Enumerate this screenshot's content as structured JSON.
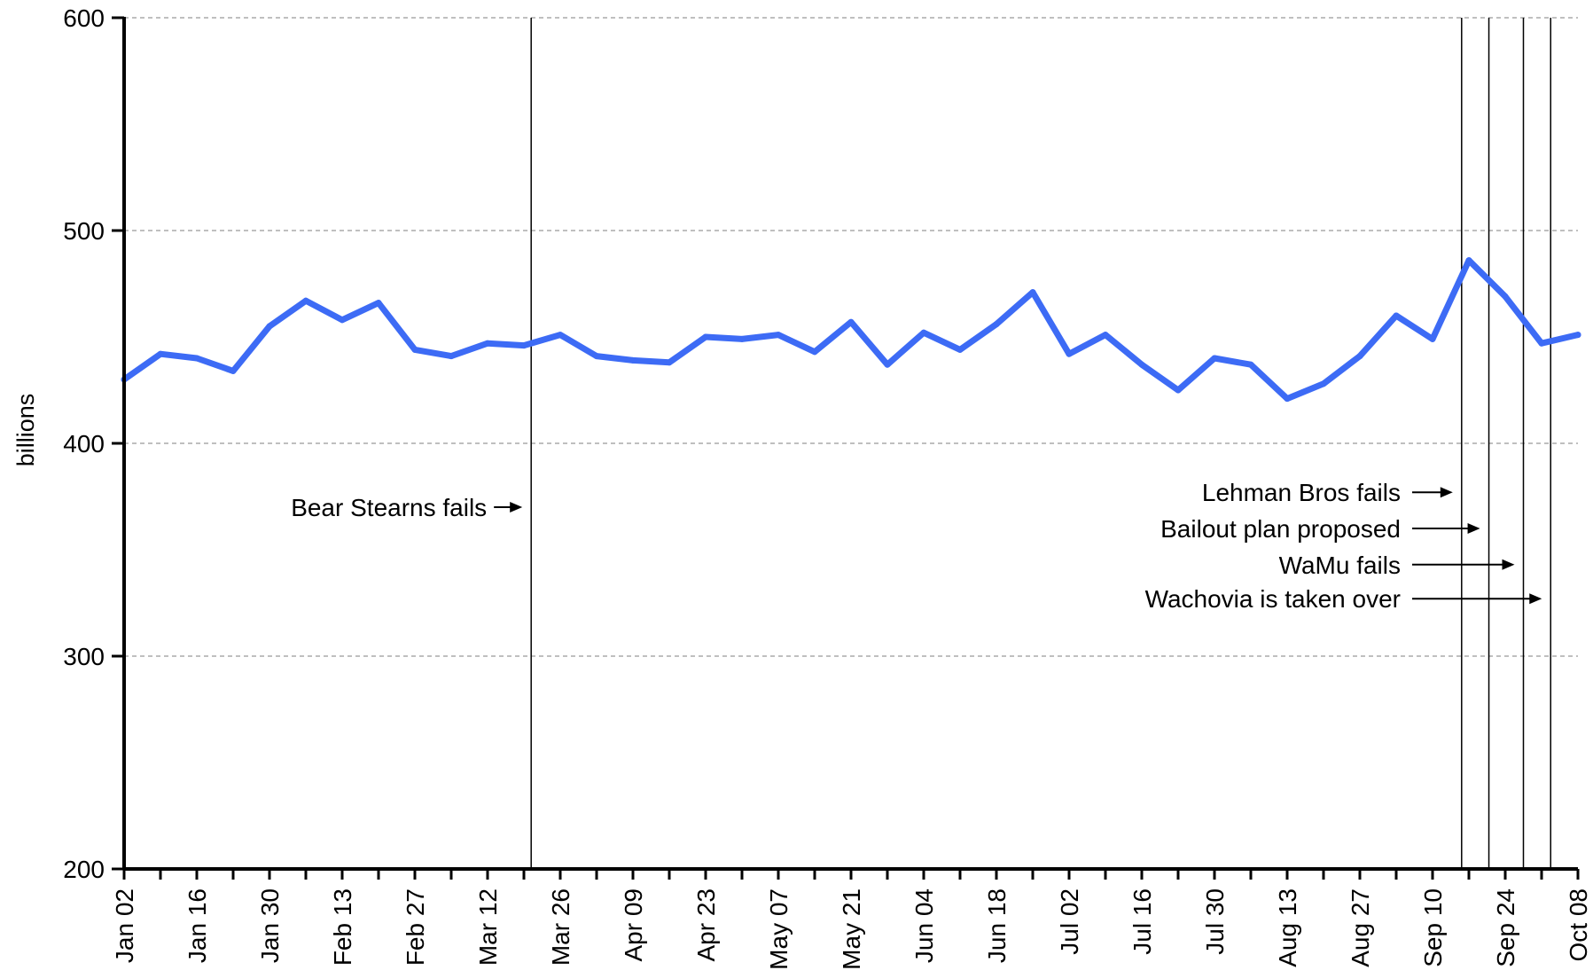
{
  "chart_data": {
    "type": "line",
    "ylabel": "billions",
    "ylim": [
      200,
      600
    ],
    "yticks": [
      200,
      300,
      400,
      500,
      600
    ],
    "grid": "horizontal-dashed",
    "x_tick_labels": [
      "Jan 02",
      "Jan 16",
      "Jan 30",
      "Feb 13",
      "Feb 27",
      "Mar 12",
      "Mar 26",
      "Apr 09",
      "Apr 23",
      "May 07",
      "May 21",
      "Jun 04",
      "Jun 18",
      "Jul 02",
      "Jul 16",
      "Jul 30",
      "Aug 13",
      "Aug 27",
      "Sep 10",
      "Sep 24",
      "Oct 08"
    ],
    "series": [
      {
        "color": "#3D6BF5",
        "values": [
          430,
          442,
          440,
          434,
          455,
          467,
          458,
          466,
          444,
          441,
          447,
          446,
          451,
          441,
          439,
          438,
          450,
          449,
          451,
          443,
          457,
          437,
          452,
          444,
          456,
          471,
          442,
          451,
          437,
          425,
          440,
          437,
          421,
          428,
          441,
          460,
          449,
          486,
          469,
          447,
          451
        ]
      }
    ],
    "events": [
      {
        "label": "Bear Stearns fails",
        "x": 11.2,
        "label_y": 370
      },
      {
        "label": "Lehman Bros fails",
        "x": 36.8,
        "label_y": 377
      },
      {
        "label": "Bailout plan proposed",
        "x": 37.55,
        "label_y": 360
      },
      {
        "label": "WaMu fails",
        "x": 38.5,
        "label_y": 343
      },
      {
        "label": "Wachovia is taken over",
        "x": 39.25,
        "label_y": 327
      }
    ]
  }
}
